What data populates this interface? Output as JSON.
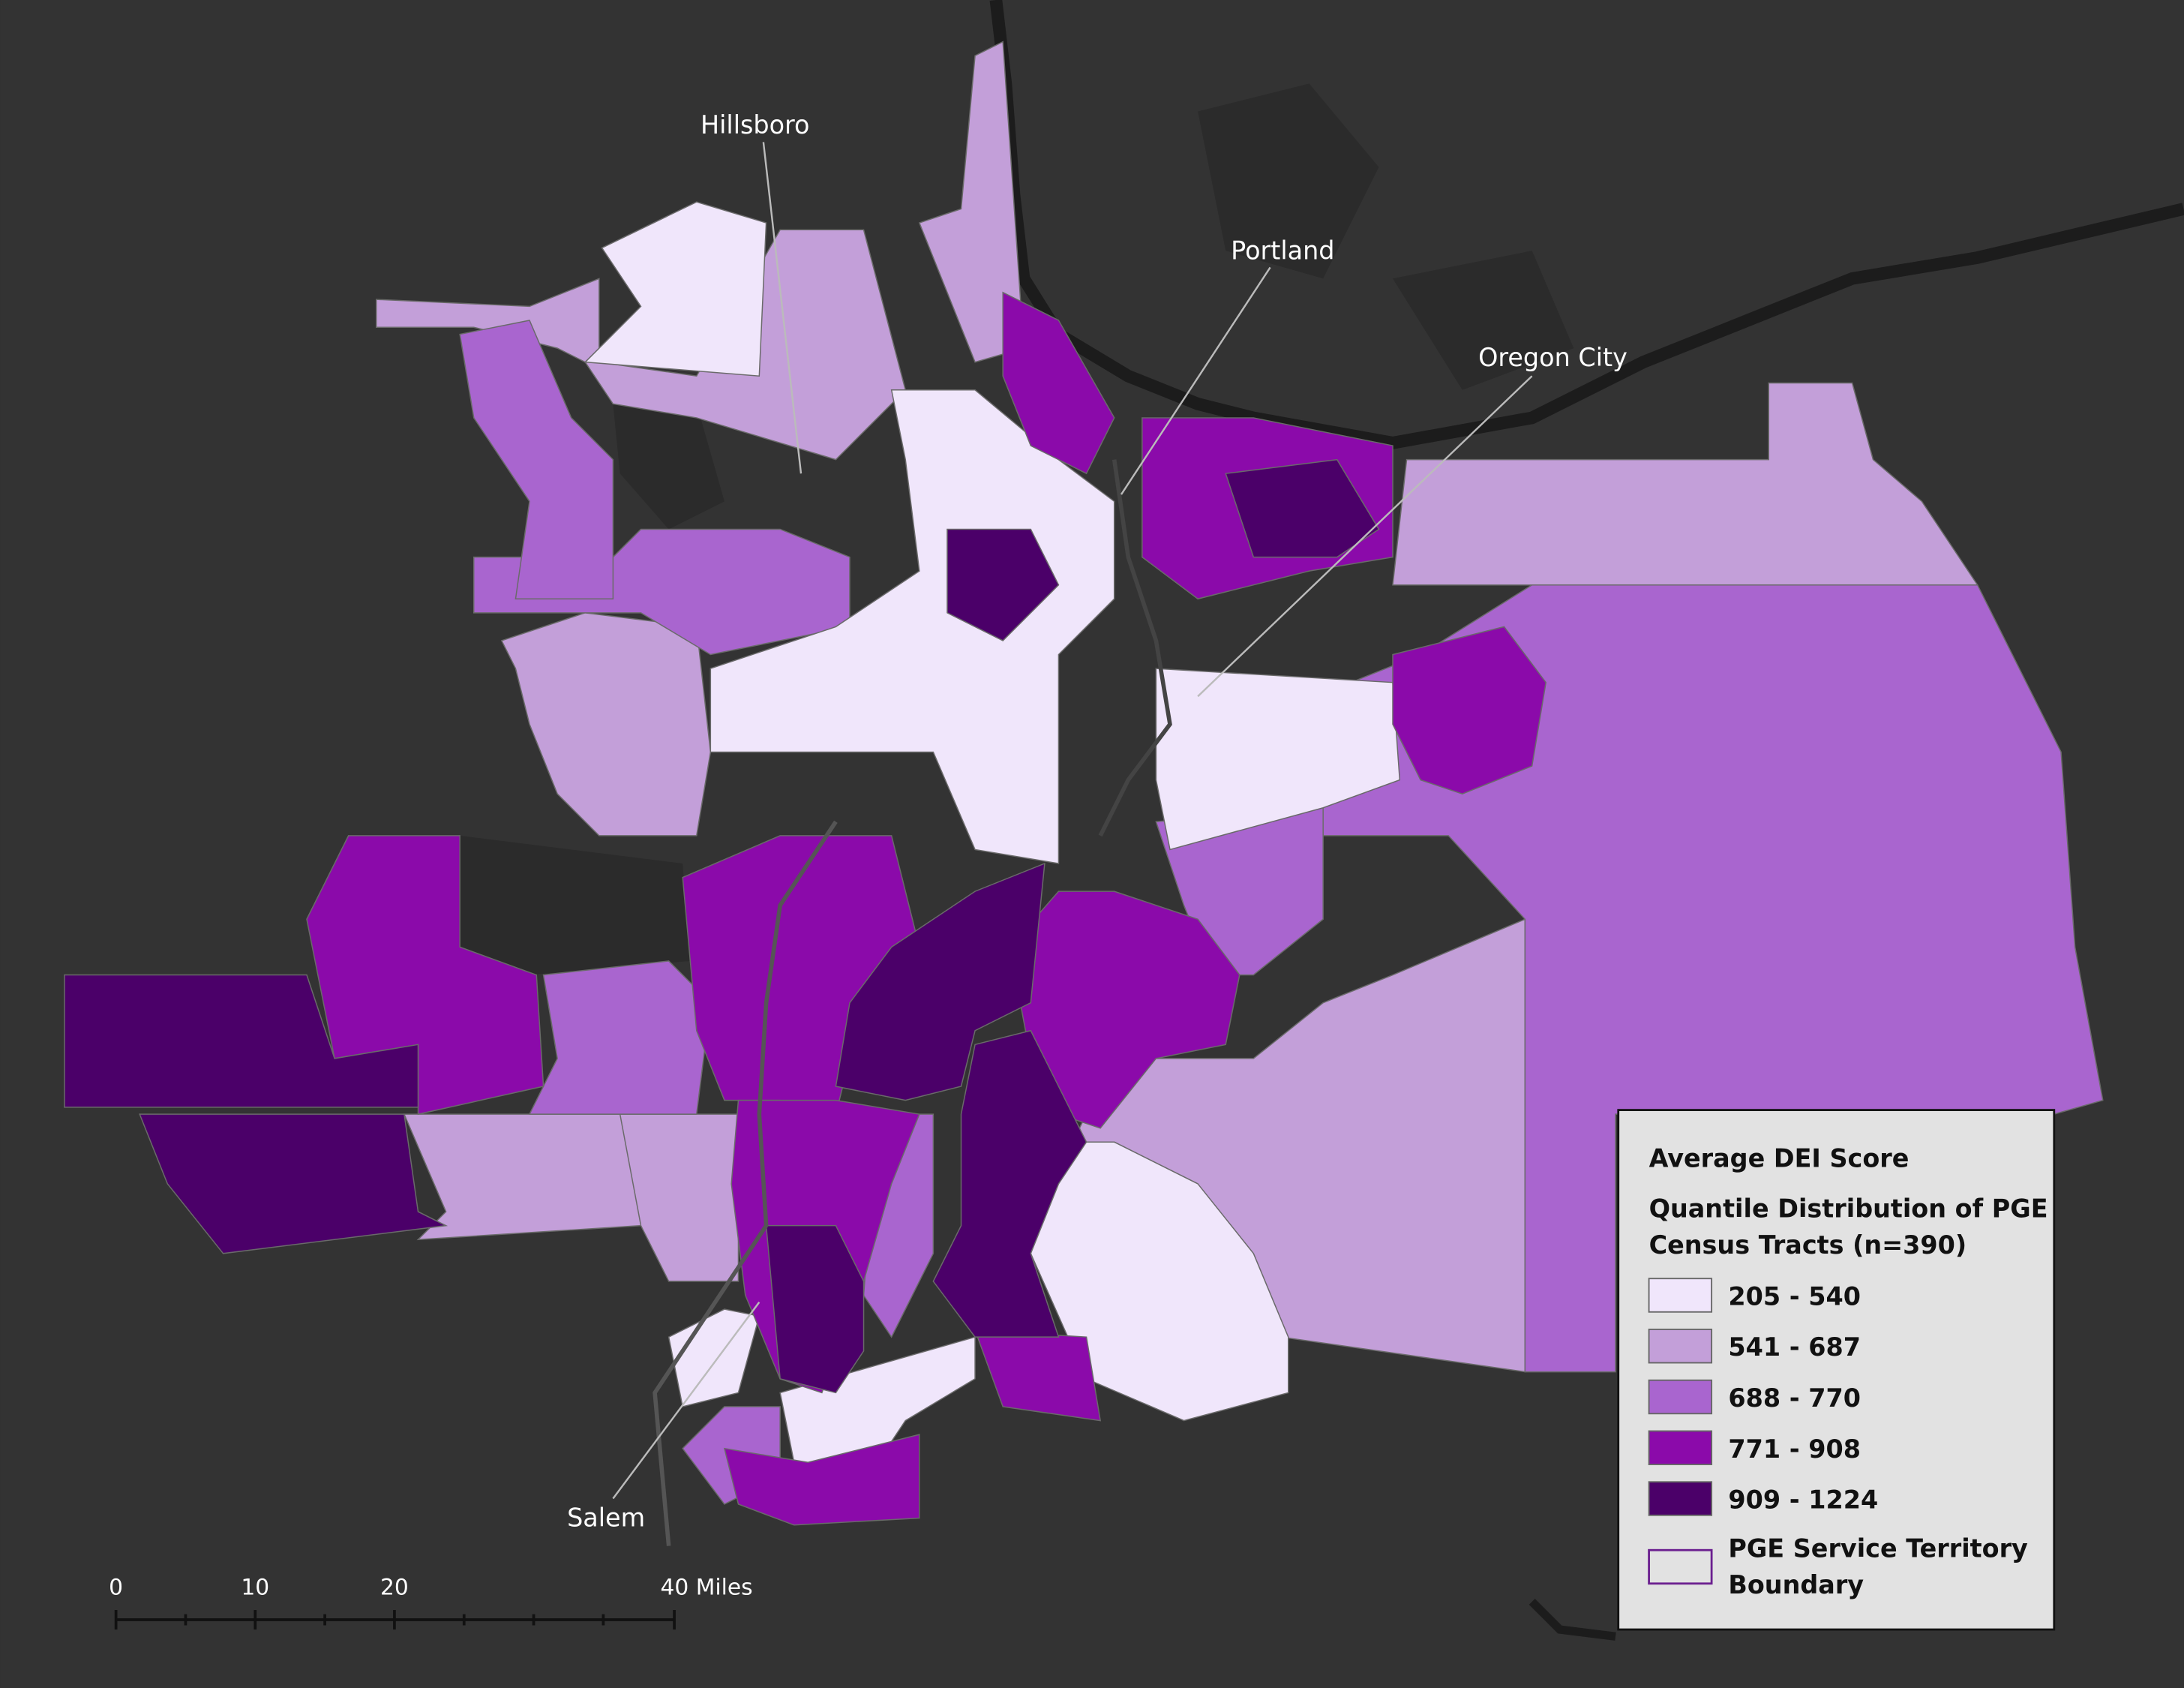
{
  "cities": [
    "Hillsboro",
    "Portland",
    "Oregon City",
    "Salem"
  ],
  "legend": {
    "title": "Average DEI Score",
    "subtitle_lines": [
      "Quantile Distribution of PGE",
      "Census Tracts (n=390)"
    ],
    "classes": [
      {
        "label": "205 - 540",
        "color": "#f0e6fb"
      },
      {
        "label": "541 - 687",
        "color": "#c39fd9"
      },
      {
        "label": "688 - 770",
        "color": "#a965cf"
      },
      {
        "label": "771 - 908",
        "color": "#8b0aaa"
      },
      {
        "label": "909 - 1224",
        "color": "#4b0069"
      }
    ],
    "boundary_lines": [
      "PGE Service Territory",
      "Boundary"
    ]
  },
  "scale_bar": {
    "labels": [
      "0",
      "10",
      "20",
      "40 Miles"
    ]
  }
}
